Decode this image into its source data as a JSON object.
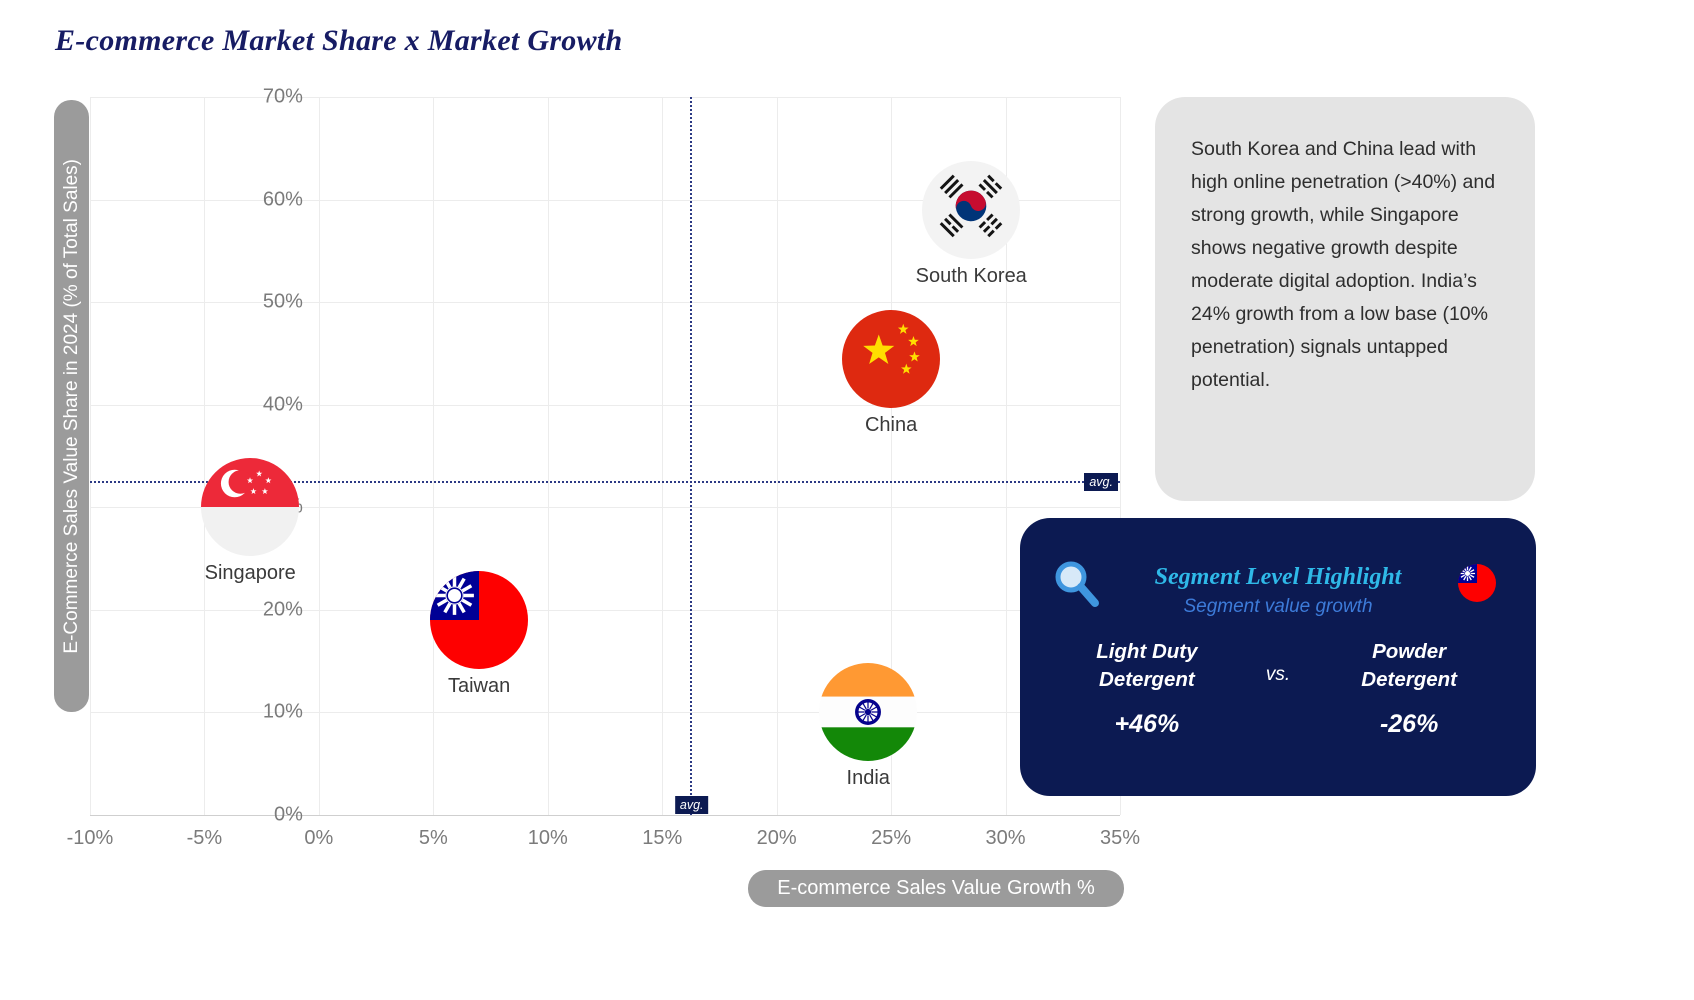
{
  "title": "E-commerce Market Share x Market Growth",
  "chart_data": {
    "type": "scatter",
    "title": "E-commerce Market Share x Market Growth",
    "xlabel": "E-commerce Sales Value Growth %",
    "ylabel": "E-Commerce Sales Value Share in 2024 (% of Total Sales)",
    "xlim": [
      -10,
      35
    ],
    "ylim": [
      0,
      70
    ],
    "x_ticks": [
      -10,
      -5,
      0,
      5,
      10,
      15,
      20,
      25,
      30,
      35
    ],
    "y_ticks": [
      0,
      10,
      20,
      30,
      40,
      50,
      60,
      70
    ],
    "tick_suffix": "%",
    "grid": true,
    "legend": "none",
    "average_lines": {
      "x": 16.2,
      "y": 32.6,
      "label": "avg."
    },
    "points": [
      {
        "name": "South Korea",
        "x": 28.5,
        "y": 59,
        "flag": "south-korea"
      },
      {
        "name": "China",
        "x": 25,
        "y": 44.5,
        "flag": "china"
      },
      {
        "name": "Singapore",
        "x": -3,
        "y": 30,
        "flag": "singapore"
      },
      {
        "name": "Taiwan",
        "x": 7,
        "y": 19,
        "flag": "taiwan"
      },
      {
        "name": "India",
        "x": 24,
        "y": 10,
        "flag": "india"
      }
    ]
  },
  "annotation": {
    "text": "South Korea and China lead with high online penetration (>40%) and strong growth, while Singapore shows negative growth despite moderate digital adoption. India’s 24% growth from a low base (10% penetration) signals untapped potential."
  },
  "highlight": {
    "title": "Segment Level Highlight",
    "subtitle": "Segment value growth",
    "icon": "magnifier-icon",
    "flag": "taiwan",
    "left_label": "Light Duty Detergent",
    "left_value": "+46%",
    "vs_label": "vs.",
    "right_label": "Powder Detergent",
    "right_value": "-26%"
  },
  "colors": {
    "title_navy": "#171c64",
    "pill_gray": "#9b9b9b",
    "annotation_bg": "#e4e4e4",
    "card_navy": "#0c1a52",
    "highlight_cyan": "#2fb9e8",
    "highlight_blue": "#3d7bd9",
    "avg_line": "#2c3a85"
  }
}
